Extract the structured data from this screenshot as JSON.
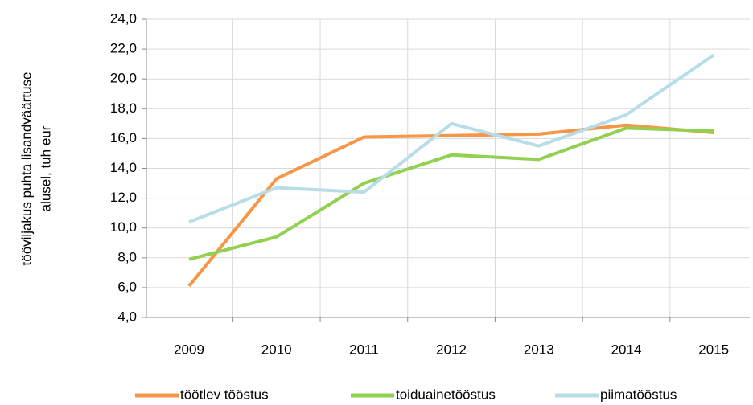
{
  "chart_data": {
    "type": "line",
    "ylabel": [
      "tööviljakus puhta lisandväärtuse",
      "alusel, tuh eur"
    ],
    "categories": [
      "2009",
      "2010",
      "2011",
      "2012",
      "2013",
      "2014",
      "2015"
    ],
    "series": [
      {
        "name": "töötlev tööstus",
        "color": "#f79646",
        "values": [
          6.1,
          13.3,
          16.1,
          16.2,
          16.3,
          16.9,
          16.4
        ]
      },
      {
        "name": "toiduainetööstus",
        "color": "#92d050",
        "values": [
          7.9,
          9.4,
          13.0,
          14.9,
          14.6,
          16.7,
          16.5
        ]
      },
      {
        "name": "piimatööstus",
        "color": "#b7dde8",
        "values": [
          10.4,
          12.7,
          12.4,
          17.0,
          15.5,
          17.6,
          21.6
        ]
      }
    ],
    "ylim": [
      4,
      24
    ],
    "yticks": [
      {
        "value": 4,
        "label": "4,0"
      },
      {
        "value": 6,
        "label": "6,0"
      },
      {
        "value": 8,
        "label": "8,0"
      },
      {
        "value": 10,
        "label": "10,0"
      },
      {
        "value": 12,
        "label": "12,0"
      },
      {
        "value": 14,
        "label": "14,0"
      },
      {
        "value": 16,
        "label": "16,0"
      },
      {
        "value": 18,
        "label": "18,0"
      },
      {
        "value": 20,
        "label": "20,0"
      },
      {
        "value": 22,
        "label": "22,0"
      },
      {
        "value": 24,
        "label": "24,0"
      }
    ],
    "grid": true,
    "legend": "bottom"
  }
}
